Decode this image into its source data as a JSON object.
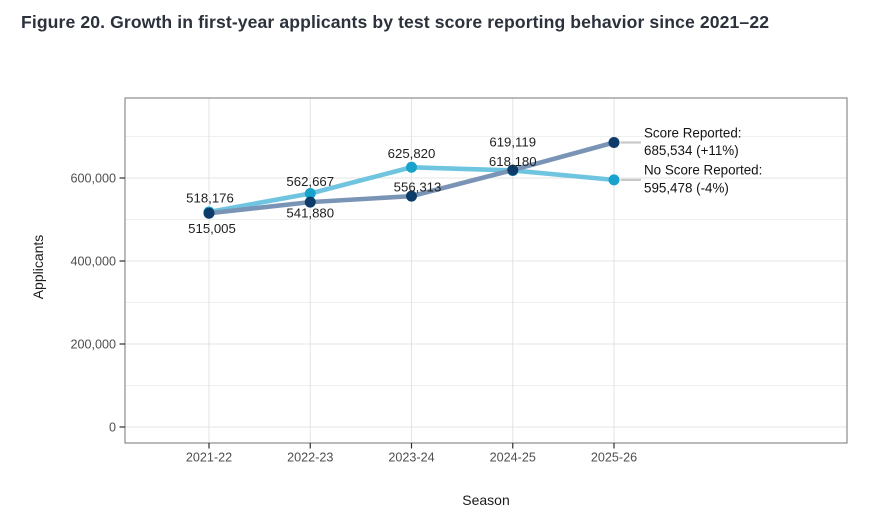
{
  "figure": {
    "title": "Figure 20. Growth in first-year applicants by test score reporting behavior since 2021–22"
  },
  "chart_data": {
    "type": "line",
    "title": "Figure 20. Growth in first-year applicants by test score reporting behavior since 2021–22",
    "xlabel": "Season",
    "ylabel": "Applicants",
    "categories": [
      "2021-22",
      "2022-23",
      "2023-24",
      "2024-25",
      "2025-26"
    ],
    "series": [
      {
        "name": "Score Reported",
        "values": [
          515005,
          541880,
          556313,
          619119,
          685534
        ],
        "line_color": "#7a94b6",
        "point_color": "#0d3c6a",
        "end_label": [
          "Score Reported:",
          "685,534 (+11%)"
        ],
        "point_labels": [
          {
            "text": "515,005",
            "dx": 3,
            "dy": 15
          },
          {
            "text": "541,880",
            "dx": 0,
            "dy": 11
          },
          {
            "text": "556,313",
            "dx": 6,
            "dy": -9
          },
          {
            "text": "619,119",
            "dx": 0,
            "dy": -28
          },
          null
        ]
      },
      {
        "name": "No Score Reported",
        "values": [
          518176,
          562667,
          625820,
          618180,
          595478
        ],
        "line_color": "#6fc5e0",
        "point_color": "#17a3cb",
        "end_label": [
          "No Score Reported:",
          "595,478 (-4%)"
        ],
        "point_labels": [
          {
            "text": "518,176",
            "dx": 1,
            "dy": -14
          },
          {
            "text": "562,667",
            "dx": 0,
            "dy": -12
          },
          {
            "text": "625,820",
            "dx": 0,
            "dy": -14
          },
          {
            "text": "618,180",
            "dx": 0,
            "dy": -9
          },
          null
        ]
      }
    ],
    "y_ticks": [
      {
        "value": 0,
        "label": "0"
      },
      {
        "value": 200000,
        "label": "200,000"
      },
      {
        "value": 400000,
        "label": "400,000"
      },
      {
        "value": 600000,
        "label": "600,000"
      }
    ],
    "y_minor": [
      100000,
      300000,
      500000,
      700000
    ],
    "ylim": [
      0,
      790000
    ],
    "grid": true,
    "legend_position": "right-of-last-point",
    "colors": {
      "grid_major": "#e4e4e4",
      "grid_minor": "#f0f0f0",
      "panel_border": "#8c8c8c",
      "tick_mark": "#2f2f2f",
      "leader_line": "#c9c9c9",
      "title_text": "#2c323c"
    }
  }
}
